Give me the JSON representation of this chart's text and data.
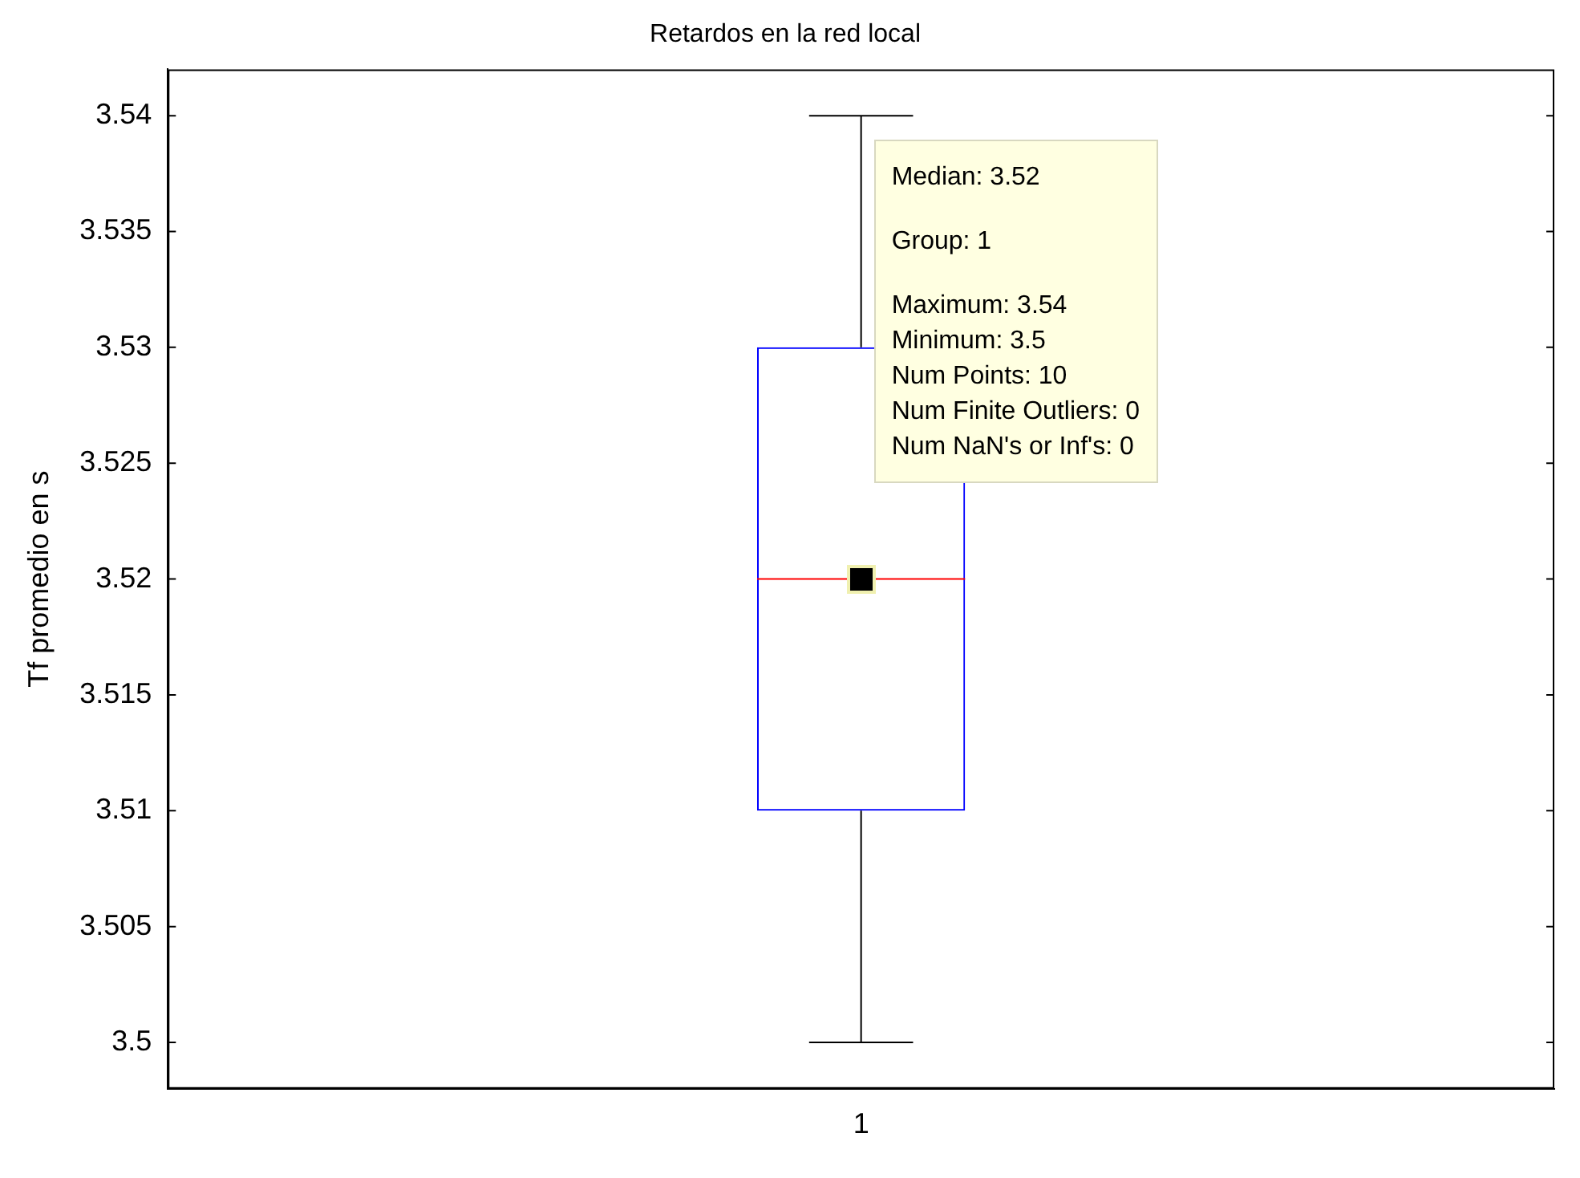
{
  "chart_data": {
    "type": "box",
    "title": "Retardos en la red local",
    "ylabel": "Tf promedio en s",
    "categories": [
      "1"
    ],
    "series": [
      {
        "color": "#0000ff",
        "boxes": [
          {
            "low": 3.5,
            "q1": 3.51,
            "median": 3.52,
            "q3": 3.53,
            "high": 3.54
          }
        ]
      }
    ],
    "ylim": [
      3.498,
      3.542
    ],
    "yticks": [
      3.5,
      3.505,
      3.51,
      3.515,
      3.52,
      3.525,
      3.53,
      3.535,
      3.54
    ],
    "grid": false,
    "legend": false,
    "annotations": [
      "Median: 3.52",
      "Group: 1",
      "Maximum: 3.54",
      "Minimum: 3.5",
      "Num Points: 10",
      "Num Finite Outliers: 0",
      "Num NaN's or Inf's: 0"
    ]
  }
}
